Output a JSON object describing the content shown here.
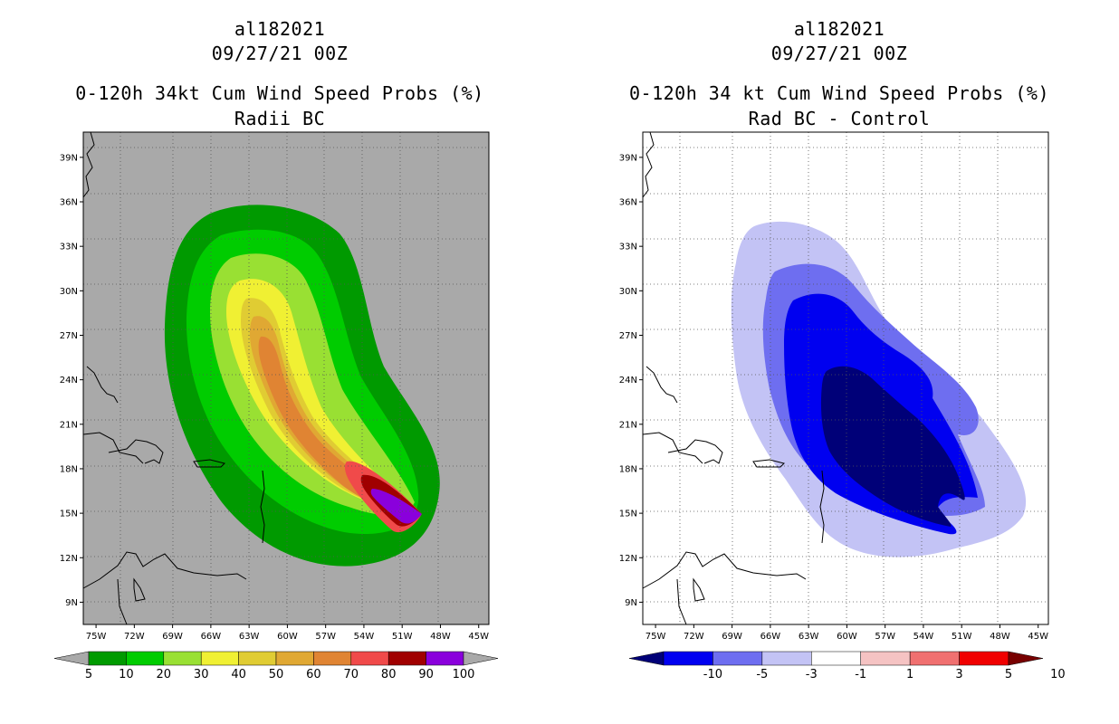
{
  "chart_data": [
    {
      "type": "heatmap",
      "storm_id": "al182021",
      "init_time": "09/27/21 00Z",
      "title": "0-120h 34kt Cum Wind Speed Probs (%)",
      "subtitle": "Radii BC",
      "xlabel": "",
      "ylabel": "",
      "xlim": [
        "75W",
        "45W"
      ],
      "ylim": [
        "9N",
        "39N"
      ],
      "x_ticks": [
        "75W",
        "72W",
        "69W",
        "66W",
        "63W",
        "60W",
        "57W",
        "54W",
        "51W",
        "48W",
        "45W"
      ],
      "y_ticks": [
        "9N",
        "12N",
        "15N",
        "18N",
        "21N",
        "24N",
        "27N",
        "30N",
        "33N",
        "36N",
        "39N"
      ],
      "grid": true,
      "colorbar": {
        "labels": [
          "5",
          "10",
          "20",
          "30",
          "40",
          "50",
          "60",
          "70",
          "80",
          "90",
          "100"
        ],
        "colors": [
          "#009a00",
          "#00cc00",
          "#99e033",
          "#f0f033",
          "#e0cc33",
          "#e0a833",
          "#e08433",
          "#f04a4a",
          "#a00000",
          "#8a00dc"
        ],
        "under_color": "#a9a9a9",
        "over_color": "#a9a9a9"
      }
    },
    {
      "type": "heatmap",
      "storm_id": "al182021",
      "init_time": "09/27/21 00Z",
      "title": "0-120h 34 kt Cum Wind Speed Probs (%)",
      "subtitle": "Rad BC - Control",
      "xlabel": "",
      "ylabel": "",
      "xlim": [
        "75W",
        "45W"
      ],
      "ylim": [
        "9N",
        "39N"
      ],
      "x_ticks": [
        "75W",
        "72W",
        "69W",
        "66W",
        "63W",
        "60W",
        "57W",
        "54W",
        "51W",
        "48W",
        "45W"
      ],
      "y_ticks": [
        "9N",
        "12N",
        "15N",
        "18N",
        "21N",
        "24N",
        "27N",
        "30N",
        "33N",
        "36N",
        "39N"
      ],
      "grid": true,
      "colorbar": {
        "labels": [
          "-10",
          "-5",
          "-3",
          "-1",
          "1",
          "3",
          "5",
          "10"
        ],
        "colors": [
          "#0000f0",
          "#6e6ef0",
          "#c3c3f5",
          "#ffffff",
          "#f5c3c3",
          "#f07070",
          "#f00000"
        ],
        "under_color": "#000078",
        "over_color": "#780000"
      }
    }
  ]
}
